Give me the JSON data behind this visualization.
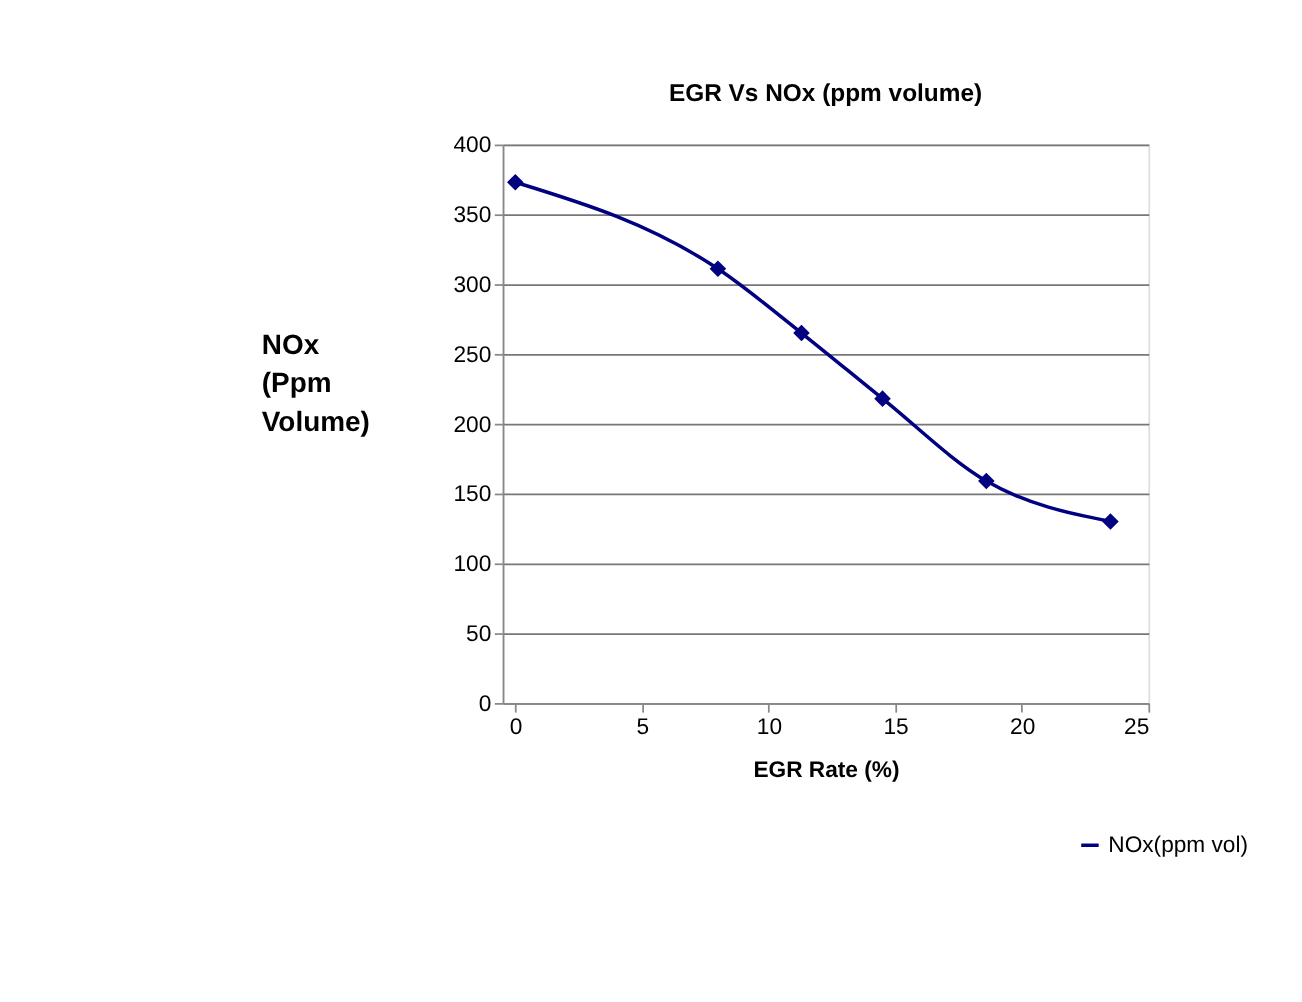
{
  "chart_data": {
    "type": "line",
    "title": "EGR Vs NOx (ppm volume)",
    "xlabel": "EGR Rate (%)",
    "ylabel": "NOx (Ppm Volume)",
    "x": [
      0,
      8,
      11.3,
      14.5,
      18.6,
      23.5
    ],
    "series": [
      {
        "name": "NOx(ppm vol)",
        "color": "#000080",
        "values": [
          373,
          311,
          265,
          218,
          159,
          130
        ]
      }
    ],
    "xlim": [
      -0.5,
      25
    ],
    "xticks": [
      0,
      5,
      10,
      15,
      20,
      25
    ],
    "ylim": [
      0,
      400
    ],
    "yticks": [
      0,
      50,
      100,
      150,
      200,
      250,
      300,
      350,
      400
    ],
    "grid": "y",
    "legend": "bottom right",
    "marker": "diamond",
    "line_style": "solid"
  }
}
